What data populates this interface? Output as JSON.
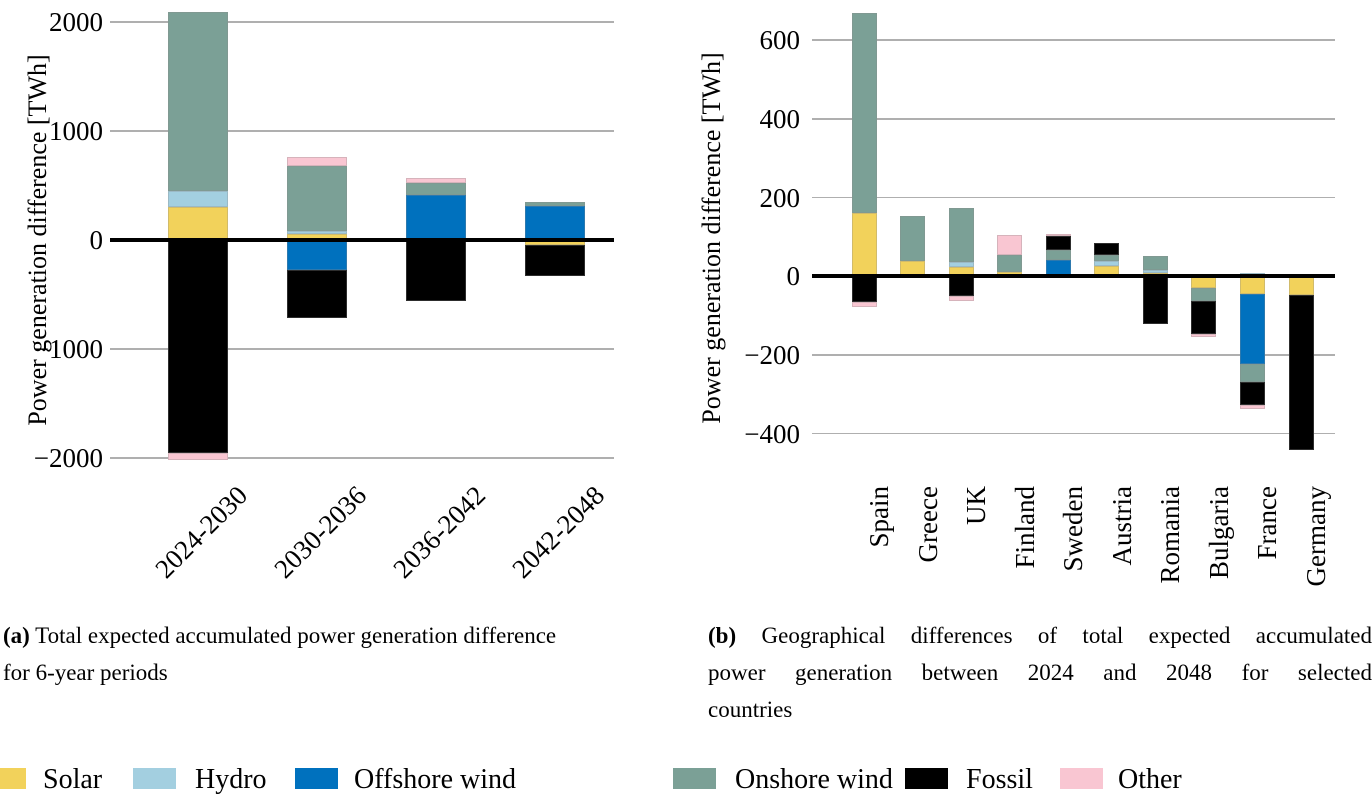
{
  "figure": {
    "caption_a": {
      "label": "(a)",
      "line1": "Total expected accumulated power generation difference",
      "line2": "for 6-year periods"
    },
    "caption_b": {
      "label": "(b)",
      "line1": "Geographical differences of total expected accumulated",
      "line2": "power generation between 2024 and 2048 for selected",
      "line3": "countries"
    },
    "legend": [
      {
        "label": "Solar",
        "color": "#F2D25B"
      },
      {
        "label": "Hydro",
        "color": "#A3CFE0"
      },
      {
        "label": "Offshore wind",
        "color": "#0071BE"
      },
      {
        "label": "Onshore wind",
        "color": "#7BA096"
      },
      {
        "label": "Fossil",
        "color": "#000000"
      },
      {
        "label": "Other",
        "color": "#F9C6D2"
      }
    ],
    "gridline_color": "#afafaf"
  },
  "chart_data": [
    {
      "id": "a",
      "type": "bar",
      "stacked": true,
      "title": "(a) Total expected accumulated power generation difference for 6-year periods",
      "ylabel": "Power generation difference [TWh]",
      "unit": "TWh",
      "ylim": [
        -2110,
        2110
      ],
      "yticks": [
        2000,
        1000,
        0,
        -1000,
        -2000
      ],
      "grid": true,
      "categories": [
        "2024-2030",
        "2030-2036",
        "2036-2042",
        "2042-2048"
      ],
      "series": [
        {
          "name": "Solar",
          "color": "#F2D25B",
          "values": [
            300,
            55,
            0,
            -50
          ]
        },
        {
          "name": "Hydro",
          "color": "#A3CFE0",
          "values": [
            150,
            25,
            0,
            0
          ]
        },
        {
          "name": "Offshore wind",
          "color": "#0071BE",
          "values": [
            0,
            -275,
            410,
            310
          ]
        },
        {
          "name": "Onshore wind",
          "color": "#7BA096",
          "values": [
            1640,
            600,
            110,
            35
          ]
        },
        {
          "name": "Fossil",
          "color": "#000000",
          "values": [
            -1950,
            -445,
            -560,
            -280
          ]
        },
        {
          "name": "Other",
          "color": "#F9C6D2",
          "values": [
            -70,
            80,
            45,
            0
          ]
        }
      ]
    },
    {
      "id": "b",
      "type": "bar",
      "stacked": true,
      "title": "(b) Geographical differences of total expected accumulated power generation between 2024 and 2048 for selected countries",
      "ylabel": "Power generation difference [TWh]",
      "unit": "TWh",
      "ylim": [
        -490,
        677
      ],
      "yticks": [
        600,
        400,
        200,
        0,
        -200,
        -400
      ],
      "grid": true,
      "categories": [
        "Spain",
        "Greece",
        "UK",
        "Finland",
        "Sweden",
        "Austria",
        "Romania",
        "Bulgaria",
        "France",
        "Germany"
      ],
      "series": [
        {
          "name": "Solar",
          "color": "#F2D25B",
          "values": [
            160,
            40,
            24,
            11,
            0,
            26,
            8,
            -30,
            -44,
            -47
          ]
        },
        {
          "name": "Hydro",
          "color": "#A3CFE0",
          "values": [
            0,
            0,
            13,
            0,
            0,
            12,
            7,
            0,
            8,
            0
          ]
        },
        {
          "name": "Offshore wind",
          "color": "#0071BE",
          "values": [
            0,
            0,
            0,
            0,
            41,
            0,
            0,
            0,
            -178,
            0
          ]
        },
        {
          "name": "Onshore wind",
          "color": "#7BA096",
          "values": [
            510,
            113,
            136,
            44,
            27,
            17,
            36,
            -34,
            -46,
            0
          ]
        },
        {
          "name": "Fossil",
          "color": "#000000",
          "values": [
            -65,
            0,
            -50,
            0,
            34,
            30,
            -122,
            -83,
            -59,
            -395
          ]
        },
        {
          "name": "Other",
          "color": "#F9C6D2",
          "values": [
            -12,
            0,
            -14,
            49,
            5,
            0,
            0,
            -8,
            -11,
            0
          ]
        }
      ]
    }
  ]
}
